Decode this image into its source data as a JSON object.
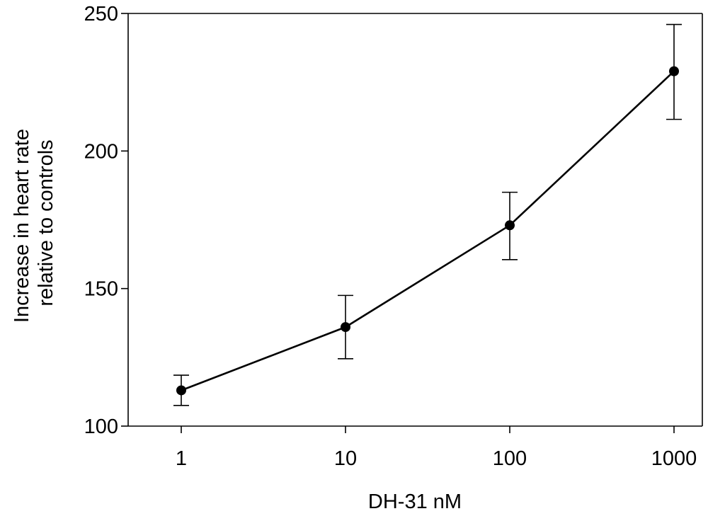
{
  "chart_data": {
    "type": "line",
    "title": "",
    "xlabel": "DH-31 nM",
    "ylabel": [
      "Increase in heart rate",
      "relative to controls"
    ],
    "x_scale": "log",
    "x": [
      1,
      10,
      100,
      1000
    ],
    "x_tick_labels": [
      "1",
      "10",
      "100",
      "1000"
    ],
    "ylim": [
      100,
      250
    ],
    "y_ticks": [
      100,
      150,
      200,
      250
    ],
    "y_tick_labels": [
      "100",
      "150",
      "200",
      "250"
    ],
    "grid": false,
    "legend": "none",
    "series": [
      {
        "values": [
          113,
          136,
          173,
          229
        ],
        "error_bars": [
          [
            107.5,
            118.5
          ],
          [
            124.5,
            147.5
          ],
          [
            160.5,
            185
          ],
          [
            211.5,
            246
          ]
        ],
        "color": "#000000",
        "marker": "filled-circle"
      }
    ]
  }
}
